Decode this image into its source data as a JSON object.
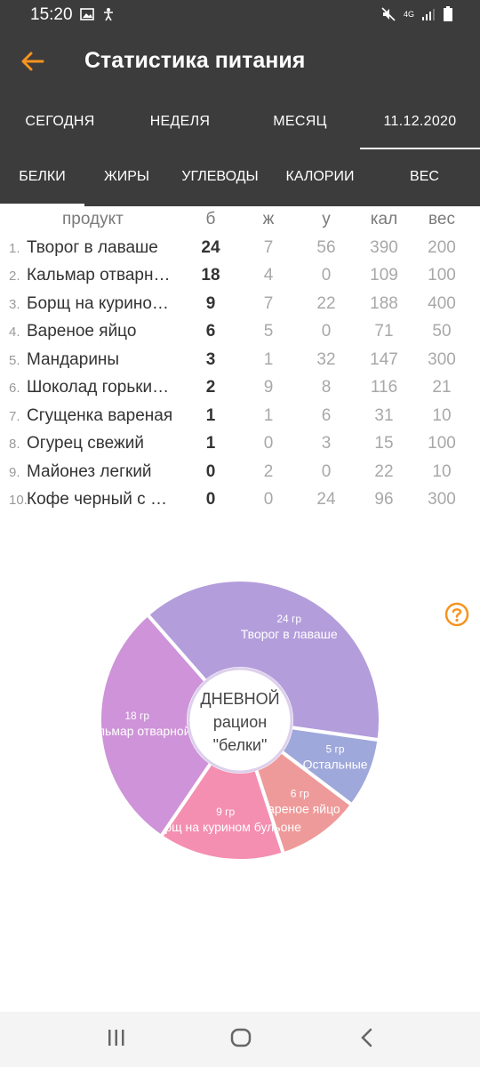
{
  "status": {
    "time": "15:20",
    "network": "4G"
  },
  "header": {
    "title": "Статистика питания"
  },
  "period_tabs": [
    {
      "label": "СЕГОДНЯ"
    },
    {
      "label": "НЕДЕЛЯ"
    },
    {
      "label": "МЕСЯЦ"
    },
    {
      "label": "11.12.2020"
    }
  ],
  "nutrient_tabs": [
    {
      "label": "БЕЛКИ"
    },
    {
      "label": "ЖИРЫ"
    },
    {
      "label": "УГЛЕВОДЫ"
    },
    {
      "label": "КАЛОРИИ"
    },
    {
      "label": "ВЕС"
    }
  ],
  "table": {
    "headers": {
      "product": "продукт",
      "b": "б",
      "zh": "ж",
      "u": "у",
      "kal": "кал",
      "ves": "вес"
    },
    "rows": [
      {
        "idx": "1.",
        "name": "Творог в лаваше",
        "b": "24",
        "zh": "7",
        "u": "56",
        "kal": "390",
        "ves": "200"
      },
      {
        "idx": "2.",
        "name": "Кальмар отварн…",
        "b": "18",
        "zh": "4",
        "u": "0",
        "kal": "109",
        "ves": "100"
      },
      {
        "idx": "3.",
        "name": "Борщ на курино…",
        "b": "9",
        "zh": "7",
        "u": "22",
        "kal": "188",
        "ves": "400"
      },
      {
        "idx": "4.",
        "name": "Вареное яйцо",
        "b": "6",
        "zh": "5",
        "u": "0",
        "kal": "71",
        "ves": "50"
      },
      {
        "idx": "5.",
        "name": "Мандарины",
        "b": "3",
        "zh": "1",
        "u": "32",
        "kal": "147",
        "ves": "300"
      },
      {
        "idx": "6.",
        "name": "Шоколад горьки…",
        "b": "2",
        "zh": "9",
        "u": "8",
        "kal": "116",
        "ves": "21"
      },
      {
        "idx": "7.",
        "name": "Сгущенка вареная",
        "b": "1",
        "zh": "1",
        "u": "6",
        "kal": "31",
        "ves": "10"
      },
      {
        "idx": "8.",
        "name": "Огурец свежий",
        "b": "1",
        "zh": "0",
        "u": "3",
        "kal": "15",
        "ves": "100"
      },
      {
        "idx": "9.",
        "name": "Майонез легкий",
        "b": "0",
        "zh": "2",
        "u": "0",
        "kal": "22",
        "ves": "10"
      },
      {
        "idx": "10.",
        "name": "Кофе черный с …",
        "b": "0",
        "zh": "0",
        "u": "24",
        "kal": "96",
        "ves": "300"
      }
    ]
  },
  "chart_center": {
    "line1": "ДНЕВНОЙ",
    "line2": "рацион",
    "line3": "\"белки\""
  },
  "chart_data": {
    "type": "pie",
    "categories": [
      "Творог в лаваше",
      "Остальные",
      "Вареное яйцо",
      "Борщ на курином бульоне",
      "Кальмар отварной"
    ],
    "values": [
      24,
      5,
      6,
      9,
      18
    ],
    "value_labels": [
      "24 гр",
      "5 гр",
      "6 гр",
      "9 гр",
      "18 гр"
    ],
    "colors": [
      "#b39ddb",
      "#9fa8da",
      "#ef9a9a",
      "#f48fb1",
      "#ce93d8"
    ]
  }
}
